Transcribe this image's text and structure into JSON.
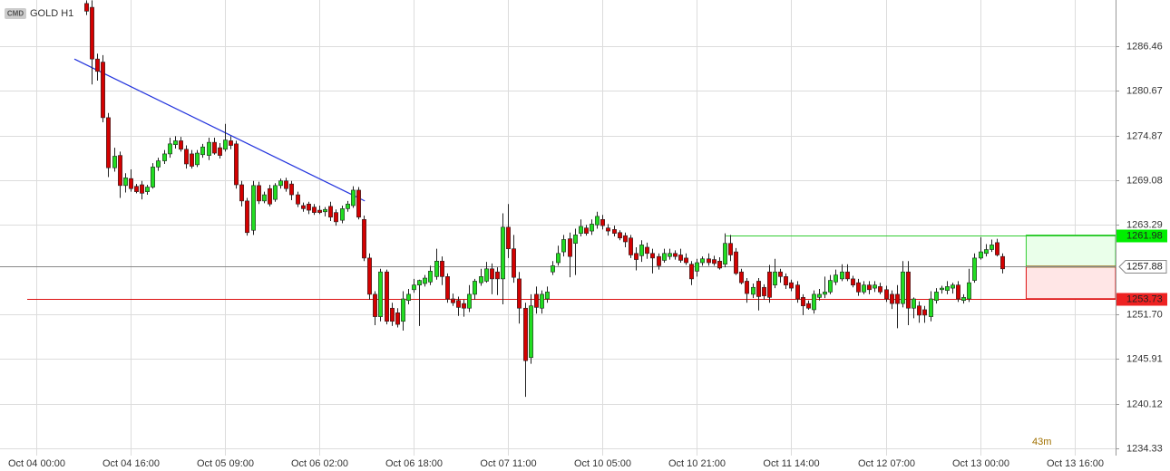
{
  "chart_data": {
    "type": "candlestick",
    "badge": "CMD",
    "title": "GOLD H1",
    "timer": "43m",
    "up_color": "#22dd22",
    "down_color": "#d40000",
    "grid": true,
    "ylim": [
      1233.39,
      1292.45
    ],
    "yticks": [
      1286.46,
      1280.67,
      1274.87,
      1269.08,
      1263.29,
      {
        "value": 1251.7,
        "label": "1251.70"
      },
      1245.91,
      1240.12,
      1234.33
    ],
    "xlim": [
      -6.5,
      194.4
    ],
    "xticks": [
      {
        "value": 0,
        "label": "Oct 04 00:00"
      },
      {
        "value": 17,
        "label": "Oct 04 16:00"
      },
      {
        "value": 34,
        "label": "Oct 05 09:00"
      },
      {
        "value": 51,
        "label": "Oct 06 02:00"
      },
      {
        "value": 68,
        "label": "Oct 06 18:00"
      },
      {
        "value": 85,
        "label": "Oct 07 11:00"
      },
      {
        "value": 102,
        "label": "Oct 10 05:00"
      },
      {
        "value": 119,
        "label": "Oct 10 21:00"
      },
      {
        "value": 136,
        "label": "Oct 11 14:00"
      },
      {
        "value": 153,
        "label": "Oct 12 07:00"
      },
      {
        "value": 170,
        "label": "Oct 13 00:00"
      },
      {
        "value": 187,
        "label": "Oct 13 16:00"
      }
    ],
    "x": [
      9,
      10,
      11,
      12,
      13,
      14,
      15,
      16,
      17,
      18,
      19,
      20,
      21,
      22,
      23,
      24,
      25,
      26,
      27,
      28,
      29,
      30,
      31,
      32,
      33,
      34,
      35,
      36,
      37,
      38,
      39,
      40,
      41,
      42,
      43,
      44,
      45,
      46,
      47,
      48,
      49,
      50,
      51,
      52,
      53,
      54,
      55,
      56,
      57,
      58,
      59,
      60,
      61,
      62,
      63,
      64,
      65,
      66,
      67,
      68,
      69,
      70,
      71,
      72,
      73,
      74,
      75,
      76,
      77,
      78,
      79,
      80,
      81,
      82,
      83,
      84,
      85,
      86,
      87,
      88,
      89,
      90,
      91,
      92,
      93,
      94,
      95,
      96,
      97,
      98,
      99,
      100,
      101,
      102,
      103,
      104,
      105,
      106,
      107,
      108,
      109,
      110,
      111,
      112,
      113,
      114,
      115,
      116,
      117,
      118,
      119,
      120,
      121,
      122,
      123,
      124,
      125,
      126,
      127,
      128,
      129,
      130,
      131,
      132,
      133,
      134,
      135,
      136,
      137,
      138,
      139,
      140,
      141,
      142,
      143,
      144,
      145,
      146,
      147,
      148,
      149,
      150,
      151,
      152,
      153,
      154,
      155,
      156,
      157,
      158,
      159,
      160,
      161,
      162,
      163,
      164,
      165,
      166,
      167,
      168,
      169,
      170,
      171,
      172,
      173,
      174
    ],
    "ohlc": [
      [
        1292,
        1292.4,
        1290.5,
        1291
      ],
      [
        1291.5,
        1292.4,
        1281.5,
        1284.8
      ],
      [
        1284.8,
        1285.5,
        1282,
        1283.2
      ],
      [
        1284.4,
        1285.3,
        1276.6,
        1277.2
      ],
      [
        1277.2,
        1277.8,
        1269.5,
        1270.7
      ],
      [
        1270.7,
        1273.3,
        1270.2,
        1272.2
      ],
      [
        1272.3,
        1272.8,
        1266.8,
        1268.4
      ],
      [
        1268.4,
        1270,
        1267.5,
        1269.4
      ],
      [
        1269.3,
        1270.5,
        1267.6,
        1268
      ],
      [
        1268.3,
        1268.6,
        1267.4,
        1267.6
      ],
      [
        1268.5,
        1269,
        1266.6,
        1267.4
      ],
      [
        1267.6,
        1268.5,
        1267.2,
        1268.2
      ],
      [
        1268.2,
        1271.3,
        1268,
        1270.8
      ],
      [
        1270.8,
        1272,
        1270.3,
        1271.6
      ],
      [
        1271.6,
        1273,
        1271.2,
        1272.5
      ],
      [
        1272.5,
        1274.6,
        1272,
        1273.8
      ],
      [
        1273.7,
        1274.8,
        1273.2,
        1274.2
      ],
      [
        1274.2,
        1274.7,
        1272.8,
        1273.1
      ],
      [
        1273.1,
        1273.6,
        1270.6,
        1271.2
      ],
      [
        1272.5,
        1273,
        1270.6,
        1270.9
      ],
      [
        1271.1,
        1273,
        1270.8,
        1272.6
      ],
      [
        1272.4,
        1273.8,
        1272,
        1273.4
      ],
      [
        1272.3,
        1274.6,
        1271.7,
        1274
      ],
      [
        1274,
        1274.6,
        1272.4,
        1272.6
      ],
      [
        1273.3,
        1273.9,
        1271.9,
        1272.3
      ],
      [
        1273.1,
        1276.4,
        1272.8,
        1274.3
      ],
      [
        1274.2,
        1274.8,
        1273.1,
        1273.6
      ],
      [
        1273.8,
        1274.2,
        1268,
        1268.5
      ],
      [
        1268.5,
        1269,
        1265.7,
        1266.4
      ],
      [
        1266.4,
        1266.8,
        1261.9,
        1262.3
      ],
      [
        1262.6,
        1269,
        1262,
        1268.4
      ],
      [
        1268.4,
        1268.9,
        1266,
        1266.4
      ],
      [
        1266.4,
        1267.6,
        1266.1,
        1267.2
      ],
      [
        1268,
        1268.5,
        1265.7,
        1266
      ],
      [
        1266.6,
        1268.7,
        1266.3,
        1268.4
      ],
      [
        1268.4,
        1269.3,
        1268,
        1269
      ],
      [
        1269,
        1269.4,
        1267.6,
        1268
      ],
      [
        1268.6,
        1269,
        1266.5,
        1267.2
      ],
      [
        1267.2,
        1267.6,
        1265.6,
        1266
      ],
      [
        1265.8,
        1266.2,
        1265,
        1265.4
      ],
      [
        1266,
        1266.3,
        1264.7,
        1265.2
      ],
      [
        1265.6,
        1266,
        1264.6,
        1264.9
      ],
      [
        1265.2,
        1265.8,
        1264.7,
        1264.9
      ],
      [
        1265,
        1265.6,
        1264.4,
        1265.3
      ],
      [
        1265.7,
        1266.3,
        1263.8,
        1264.3
      ],
      [
        1264.9,
        1265.3,
        1263.2,
        1263.7
      ],
      [
        1263.9,
        1265.8,
        1263.5,
        1265.4
      ],
      [
        1265.4,
        1266.4,
        1265,
        1266
      ],
      [
        1265.8,
        1268.3,
        1265.5,
        1267.8
      ],
      [
        1267.8,
        1268.2,
        1264,
        1264.3
      ],
      [
        1264,
        1264.5,
        1258.6,
        1259
      ],
      [
        1259,
        1259.6,
        1253.6,
        1254.3
      ],
      [
        1254.3,
        1254.7,
        1250.3,
        1251.4
      ],
      [
        1251.4,
        1257.6,
        1250.8,
        1257.2
      ],
      [
        1257.2,
        1257.5,
        1250.4,
        1250.8
      ],
      [
        1252.5,
        1253.2,
        1250.2,
        1250.8
      ],
      [
        1251.9,
        1252.5,
        1250,
        1250.4
      ],
      [
        1250.8,
        1254.7,
        1249.6,
        1253.7
      ],
      [
        1253.5,
        1255,
        1253,
        1254.3
      ],
      [
        1254.9,
        1256.3,
        1254.5,
        1255.5
      ],
      [
        1255.5,
        1256.2,
        1250.2,
        1256.1
      ],
      [
        1255.7,
        1256.8,
        1255.3,
        1256.4
      ],
      [
        1255.9,
        1258,
        1255.5,
        1257.3
      ],
      [
        1256.6,
        1260.2,
        1256.2,
        1258.6
      ],
      [
        1258.6,
        1259.2,
        1255.5,
        1256.6
      ],
      [
        1256.6,
        1257,
        1253.2,
        1253.7
      ],
      [
        1253.7,
        1254.4,
        1252.8,
        1253.2
      ],
      [
        1253.5,
        1254,
        1251.5,
        1252.6
      ],
      [
        1253.1,
        1253.6,
        1251.4,
        1252.5
      ],
      [
        1252.5,
        1255.5,
        1252,
        1254.3
      ],
      [
        1254.3,
        1256.3,
        1253.6,
        1256
      ],
      [
        1255.8,
        1257.6,
        1255.4,
        1256.6
      ],
      [
        1256,
        1258.5,
        1255.8,
        1257.6
      ],
      [
        1257.6,
        1258.3,
        1254.3,
        1256.3
      ],
      [
        1257.2,
        1257.8,
        1254.2,
        1256.3
      ],
      [
        1256.3,
        1264.8,
        1253,
        1263
      ],
      [
        1263,
        1266,
        1259,
        1260.2
      ],
      [
        1260.2,
        1262,
        1255.8,
        1256.5
      ],
      [
        1256.3,
        1257.2,
        1250.5,
        1252.5
      ],
      [
        1252.5,
        1253.2,
        1241,
        1245.7
      ],
      [
        1246.1,
        1254.3,
        1245.3,
        1252.8
      ],
      [
        1254.3,
        1255.3,
        1251.8,
        1252.6
      ],
      [
        1252.5,
        1254.8,
        1251.8,
        1254.3
      ],
      [
        1253.7,
        1255.3,
        1253.2,
        1254.6
      ],
      [
        1257.2,
        1258.6,
        1256.8,
        1258
      ],
      [
        1258.4,
        1260.6,
        1258,
        1259.6
      ],
      [
        1259.8,
        1262,
        1259.2,
        1261.4
      ],
      [
        1261.5,
        1262.3,
        1256.5,
        1259.2
      ],
      [
        1260.9,
        1262.8,
        1256.8,
        1262
      ],
      [
        1262.2,
        1264,
        1261.8,
        1263.1
      ],
      [
        1262.9,
        1263.3,
        1261.9,
        1262.2
      ],
      [
        1262.5,
        1264,
        1262,
        1263.4
      ],
      [
        1263.3,
        1265,
        1262.8,
        1264.4
      ],
      [
        1264,
        1264.6,
        1262.7,
        1263.2
      ],
      [
        1262.9,
        1263.4,
        1261.9,
        1262.5
      ],
      [
        1262.7,
        1263.2,
        1261.8,
        1262.2
      ],
      [
        1262.3,
        1262.6,
        1261.3,
        1261.6
      ],
      [
        1261.9,
        1262.3,
        1260.4,
        1261.1
      ],
      [
        1261.6,
        1262,
        1259,
        1259.4
      ],
      [
        1259.6,
        1260.4,
        1257.4,
        1258.8
      ],
      [
        1259.3,
        1261.3,
        1258.5,
        1260.7
      ],
      [
        1260.4,
        1261,
        1258.9,
        1259.6
      ],
      [
        1259.6,
        1260.2,
        1257,
        1259
      ],
      [
        1259.2,
        1259.6,
        1257.5,
        1258
      ],
      [
        1258.7,
        1260.2,
        1258.4,
        1259.6
      ],
      [
        1259.2,
        1260.2,
        1258.8,
        1259.6
      ],
      [
        1259.6,
        1260,
        1258.8,
        1259.2
      ],
      [
        1259.4,
        1260.2,
        1258.4,
        1258.7
      ],
      [
        1259,
        1259.6,
        1258.1,
        1258.4
      ],
      [
        1258.2,
        1258.6,
        1255.5,
        1256.3
      ],
      [
        1257.3,
        1258.9,
        1256.6,
        1258.4
      ],
      [
        1258.4,
        1259.2,
        1258,
        1258.9
      ],
      [
        1258.9,
        1259.6,
        1258,
        1258.4
      ],
      [
        1258.8,
        1259.3,
        1258,
        1258.3
      ],
      [
        1258.6,
        1259.1,
        1257.5,
        1257.7
      ],
      [
        1258.2,
        1262.2,
        1257.8,
        1260.9
      ],
      [
        1260.9,
        1262,
        1258.6,
        1259.4
      ],
      [
        1259.8,
        1260.3,
        1256.8,
        1257
      ],
      [
        1257.2,
        1257.6,
        1255.6,
        1255.8
      ],
      [
        1256,
        1256.4,
        1253.2,
        1254.4
      ],
      [
        1254.3,
        1255.7,
        1253.8,
        1255.2
      ],
      [
        1256,
        1256.4,
        1252.2,
        1254
      ],
      [
        1255.2,
        1255.6,
        1253.6,
        1254.1
      ],
      [
        1257.2,
        1258.1,
        1253.2,
        1253.9
      ],
      [
        1255.5,
        1258.9,
        1255.1,
        1257.2
      ],
      [
        1257.2,
        1257.6,
        1255.8,
        1256.6
      ],
      [
        1256.6,
        1257,
        1255,
        1255.5
      ],
      [
        1255.8,
        1256.2,
        1254.7,
        1255.1
      ],
      [
        1255.5,
        1256,
        1253.2,
        1253.7
      ],
      [
        1253.9,
        1254.3,
        1251.6,
        1252.8
      ],
      [
        1253.1,
        1253.5,
        1252.3,
        1252.5
      ],
      [
        1252.3,
        1254.8,
        1251.8,
        1254.3
      ],
      [
        1253.9,
        1255,
        1253.5,
        1254.3
      ],
      [
        1254.3,
        1256.6,
        1253.8,
        1254.6
      ],
      [
        1254.6,
        1256.8,
        1254.3,
        1256.1
      ],
      [
        1255.9,
        1257.5,
        1255.5,
        1256.8
      ],
      [
        1256.3,
        1258.2,
        1256,
        1257.2
      ],
      [
        1257.2,
        1258.2,
        1256,
        1256.3
      ],
      [
        1256.3,
        1256.7,
        1255.2,
        1255.5
      ],
      [
        1255.8,
        1256.3,
        1254.1,
        1254.6
      ],
      [
        1254.6,
        1256,
        1254.3,
        1255.5
      ],
      [
        1255.5,
        1256,
        1254.3,
        1254.9
      ],
      [
        1255.1,
        1256,
        1254.6,
        1255.5
      ],
      [
        1255.3,
        1255.8,
        1254.3,
        1254.6
      ],
      [
        1254.9,
        1255.4,
        1253.3,
        1253.7
      ],
      [
        1254.3,
        1254.8,
        1252.4,
        1253.1
      ],
      [
        1254.3,
        1255.5,
        1249.9,
        1253.1
      ],
      [
        1253.1,
        1258.6,
        1252.6,
        1257.2
      ],
      [
        1257.2,
        1258.6,
        1250.3,
        1252.5
      ],
      [
        1252.5,
        1253.9,
        1251.2,
        1253.7
      ],
      [
        1252.8,
        1253.4,
        1250.6,
        1251.6
      ],
      [
        1252.3,
        1252.8,
        1250.6,
        1251.6
      ],
      [
        1251.4,
        1254.7,
        1250.8,
        1253.7
      ],
      [
        1253.5,
        1255.1,
        1253.1,
        1254.6
      ],
      [
        1254.9,
        1255.4,
        1254.4,
        1255.1
      ],
      [
        1254.8,
        1256,
        1254.3,
        1255.3
      ],
      [
        1255.1,
        1255.8,
        1254.4,
        1255.5
      ],
      [
        1255.5,
        1256,
        1253.3,
        1253.7
      ],
      [
        1253.5,
        1254.3,
        1253.1,
        1253.9
      ],
      [
        1253.7,
        1257.6,
        1253.3,
        1255.8
      ],
      [
        1256.1,
        1259.6,
        1255.8,
        1259
      ],
      [
        1259,
        1261.7,
        1258.8,
        1259.8
      ],
      [
        1259.6,
        1260.8,
        1259.2,
        1260.1
      ],
      [
        1260.1,
        1261.4,
        1259.8,
        1260.7
      ],
      [
        1261,
        1261.5,
        1259.2,
        1259.4
      ],
      [
        1259.2,
        1259.6,
        1257,
        1257.6
      ]
    ],
    "trendline": {
      "color": "#2233dd",
      "x": [
        6.9,
        59.2
      ],
      "y": [
        1284.8,
        1266.4
      ]
    },
    "levels": [
      {
        "value": 1261.98,
        "color": "#33cc33",
        "label_color": "#00ee00",
        "x_start": 124.2
      },
      {
        "value": 1257.88,
        "color": "#888888",
        "label_color": "#ffffff",
        "x_start": -6.5
      },
      {
        "value": 1253.73,
        "color": "#dd1111",
        "label_color": "#ee2222",
        "x_start": -1.6
      }
    ],
    "box_start": 178.3
  }
}
